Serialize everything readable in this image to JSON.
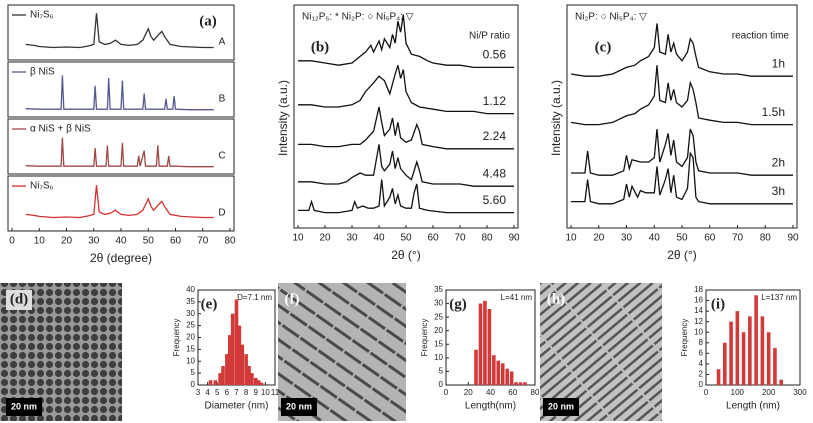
{
  "chart_data": [
    {
      "type": "line",
      "panel": "(a)",
      "label": "A",
      "legend": "top-left",
      "xlim": [
        0,
        80
      ],
      "ylim": [
        0,
        100
      ],
      "series": [
        {
          "name": "Ni₇S₆",
          "color": "#333333",
          "x": [
            5,
            8,
            10,
            15,
            20,
            25,
            28,
            30,
            31,
            32,
            34,
            36,
            38,
            40,
            43,
            46,
            48,
            50,
            51,
            52,
            54,
            55,
            56,
            58,
            62,
            66,
            70,
            74
          ],
          "values": [
            30,
            28,
            26,
            24,
            25,
            24,
            27,
            30,
            90,
            35,
            30,
            32,
            38,
            30,
            28,
            30,
            38,
            60,
            45,
            38,
            50,
            55,
            45,
            30,
            26,
            25,
            24,
            24
          ]
        }
      ]
    },
    {
      "type": "line",
      "label": "B",
      "legend": "top-left",
      "xlim": [
        0,
        80
      ],
      "ylim": [
        0,
        100
      ],
      "series": [
        {
          "name": "β NiS",
          "color": "#55598c",
          "x": [
            5,
            10,
            15,
            18,
            18.5,
            19,
            25,
            29,
            30,
            30.5,
            31,
            33,
            35,
            35.5,
            36,
            38,
            40,
            40.5,
            41,
            45,
            48,
            48.5,
            49,
            52,
            56,
            56.5,
            57,
            58,
            59,
            59.5,
            60,
            65,
            70,
            74
          ],
          "values": [
            16,
            15,
            15,
            15,
            80,
            15,
            15,
            15,
            15,
            60,
            15,
            15,
            15,
            75,
            15,
            15,
            15,
            70,
            15,
            15,
            15,
            45,
            15,
            15,
            15,
            35,
            15,
            15,
            15,
            40,
            15,
            14,
            14,
            14
          ]
        }
      ]
    },
    {
      "type": "line",
      "label": "C",
      "legend": "top-left",
      "xlim": [
        0,
        80
      ],
      "ylim": [
        0,
        100
      ],
      "series": [
        {
          "name": "α NiS + β NiS",
          "color": "#a04848",
          "x": [
            5,
            10,
            15,
            18,
            18.5,
            19,
            25,
            30,
            30.5,
            31,
            33,
            34.5,
            35,
            35.5,
            36,
            38,
            40,
            40.5,
            41,
            45,
            46,
            46.5,
            47,
            48.5,
            49,
            52,
            53,
            53.5,
            54,
            57,
            57.5,
            58,
            60,
            65,
            70,
            74
          ],
          "values": [
            16,
            15,
            15,
            15,
            70,
            15,
            15,
            15,
            50,
            15,
            15,
            15,
            55,
            15,
            15,
            15,
            15,
            60,
            15,
            15,
            15,
            35,
            15,
            45,
            15,
            15,
            15,
            55,
            15,
            15,
            35,
            15,
            15,
            14,
            14,
            14
          ]
        }
      ]
    },
    {
      "type": "line",
      "label": "D",
      "legend": "top-left",
      "xlim": [
        0,
        80
      ],
      "ylim": [
        0,
        100
      ],
      "xticks": [
        0,
        10,
        20,
        30,
        40,
        50,
        60,
        70,
        80
      ],
      "xlabel": "2θ (degree)",
      "series": [
        {
          "name": "Ni₇S₆",
          "color": "#d03030",
          "x": [
            5,
            8,
            10,
            15,
            20,
            25,
            28,
            30,
            31,
            32,
            34,
            36,
            38,
            40,
            43,
            46,
            48,
            50,
            51,
            52,
            54,
            55,
            56,
            58,
            62,
            66,
            70,
            74
          ],
          "values": [
            32,
            30,
            28,
            26,
            27,
            26,
            29,
            32,
            88,
            37,
            32,
            34,
            40,
            32,
            30,
            32,
            40,
            62,
            47,
            40,
            52,
            57,
            47,
            32,
            28,
            27,
            26,
            26
          ]
        }
      ]
    },
    {
      "type": "line",
      "panel": "(b)",
      "legend": "right",
      "annotation": "Ni₁₂P₅: *   Ni₂P: ○   Ni₅P₄: ▽",
      "legend_title": "Ni/P ratio",
      "xlim": [
        10,
        90
      ],
      "ylim": [
        0,
        100
      ],
      "xticks": [
        10,
        20,
        30,
        40,
        50,
        60,
        70,
        80,
        90
      ],
      "xlabel": "2θ (°)",
      "ylabel": "Intensity (a.u.)",
      "series": [
        {
          "name": "0.56",
          "color": "#111111",
          "x": [
            10,
            15,
            20,
            25,
            30,
            33,
            35,
            37,
            38,
            40,
            41,
            42,
            44,
            45,
            46,
            47,
            48,
            49,
            50,
            52,
            55,
            58,
            60,
            65,
            70,
            75,
            80,
            85,
            90
          ],
          "values": [
            76,
            76,
            75,
            74,
            75,
            78,
            80,
            83,
            80,
            85,
            81,
            86,
            82,
            88,
            84,
            94,
            89,
            97,
            84,
            79,
            78,
            76,
            75,
            74,
            74,
            73,
            73,
            73,
            73
          ]
        },
        {
          "name": "1.12",
          "color": "#111111",
          "x": [
            10,
            15,
            20,
            25,
            30,
            33,
            35,
            38,
            40,
            42,
            44,
            46,
            47,
            48,
            49,
            50,
            52,
            55,
            60,
            65,
            70,
            75,
            80,
            85,
            90
          ],
          "values": [
            56,
            56,
            55,
            55,
            56,
            58,
            62,
            66,
            69,
            67,
            61,
            70,
            74,
            68,
            72,
            62,
            57,
            55,
            54,
            53,
            53,
            53,
            52,
            52,
            52
          ]
        },
        {
          "name": "2.24",
          "color": "#111111",
          "x": [
            10,
            15,
            20,
            25,
            30,
            33,
            35,
            38,
            40,
            41,
            42,
            44,
            45,
            46,
            47,
            48,
            50,
            52,
            54,
            55,
            56,
            60,
            65,
            70,
            75,
            80,
            85,
            90
          ],
          "values": [
            38,
            38,
            37,
            37,
            38,
            38,
            40,
            44,
            55,
            48,
            42,
            45,
            50,
            42,
            48,
            41,
            39,
            40,
            47,
            44,
            38,
            37,
            36,
            36,
            36,
            36,
            36,
            36
          ]
        },
        {
          "name": "4.48",
          "color": "#111111",
          "x": [
            10,
            15,
            20,
            25,
            28,
            30,
            33,
            35,
            38,
            40,
            41,
            42,
            44,
            45,
            46,
            47,
            48,
            50,
            52,
            54,
            55,
            56,
            60,
            65,
            70,
            75,
            80,
            85,
            90
          ],
          "values": [
            21,
            21,
            20,
            20,
            21,
            23,
            25,
            24,
            24,
            38,
            28,
            26,
            29,
            35,
            27,
            32,
            27,
            24,
            22,
            30,
            26,
            21,
            20,
            20,
            20,
            19,
            19,
            19,
            19
          ]
        },
        {
          "name": "5.60",
          "color": "#111111",
          "x": [
            10,
            14,
            15,
            16,
            20,
            25,
            30,
            31,
            32,
            34,
            36,
            38,
            40,
            41,
            42,
            44,
            45,
            46,
            47,
            48,
            50,
            52,
            53,
            54,
            55,
            58,
            65,
            70,
            75,
            80,
            85,
            90
          ],
          "values": [
            8,
            8,
            12,
            8,
            7,
            7,
            8,
            12,
            9,
            10,
            9,
            9,
            10,
            22,
            10,
            14,
            18,
            11,
            15,
            10,
            9,
            9,
            16,
            20,
            9,
            8,
            7,
            7,
            7,
            7,
            7,
            7
          ]
        }
      ]
    },
    {
      "type": "line",
      "panel": "(c)",
      "legend": "right",
      "annotation": "Ni₂P: ○   Ni₅P₄: ▽",
      "legend_title": "reaction time",
      "xlim": [
        10,
        90
      ],
      "ylim": [
        0,
        100
      ],
      "xticks": [
        10,
        20,
        30,
        40,
        50,
        60,
        70,
        80,
        90
      ],
      "xlabel": "2θ (°)",
      "ylabel": "Intensity (a.u.)",
      "series": [
        {
          "name": "1h",
          "color": "#111111",
          "x": [
            10,
            15,
            20,
            25,
            30,
            33,
            35,
            38,
            40,
            41,
            42,
            44,
            45,
            46,
            47,
            48,
            50,
            52,
            53,
            54,
            55,
            56,
            60,
            65,
            70,
            75,
            80,
            85,
            90
          ],
          "values": [
            70,
            69,
            69,
            70,
            73,
            74,
            76,
            78,
            82,
            93,
            80,
            79,
            88,
            80,
            84,
            79,
            76,
            80,
            86,
            84,
            78,
            73,
            71,
            70,
            70,
            69,
            69,
            69,
            69
          ]
        },
        {
          "name": "1.5h",
          "color": "#111111",
          "x": [
            10,
            15,
            20,
            25,
            30,
            33,
            35,
            38,
            40,
            41,
            42,
            44,
            45,
            46,
            47,
            48,
            50,
            52,
            53,
            54,
            55,
            56,
            60,
            65,
            70,
            75,
            80,
            85,
            90
          ],
          "values": [
            48,
            47,
            47,
            48,
            51,
            52,
            54,
            56,
            60,
            74,
            58,
            57,
            66,
            58,
            63,
            57,
            55,
            58,
            66,
            63,
            57,
            50,
            49,
            48,
            48,
            47,
            47,
            47,
            47
          ]
        },
        {
          "name": "2h",
          "color": "#111111",
          "x": [
            10,
            15,
            16,
            17,
            20,
            25,
            29,
            30,
            31,
            32,
            35,
            38,
            40,
            41,
            42,
            44,
            45,
            46,
            47,
            48,
            50,
            52,
            53,
            54,
            55,
            56,
            60,
            65,
            70,
            75,
            80,
            85,
            90
          ],
          "values": [
            25,
            25,
            35,
            25,
            24,
            24,
            26,
            33,
            27,
            31,
            30,
            30,
            32,
            45,
            30,
            38,
            43,
            33,
            40,
            30,
            28,
            32,
            45,
            42,
            30,
            26,
            25,
            25,
            25,
            24,
            24,
            24,
            24
          ]
        },
        {
          "name": "3h",
          "color": "#111111",
          "x": [
            10,
            15,
            16,
            17,
            20,
            25,
            29,
            30,
            31,
            32,
            34,
            35,
            37,
            40,
            41,
            42,
            44,
            45,
            46,
            47,
            48,
            50,
            52,
            53,
            54,
            55,
            56,
            60,
            65,
            70,
            75,
            80,
            85,
            90
          ],
          "values": [
            12,
            12,
            22,
            12,
            11,
            11,
            13,
            20,
            14,
            19,
            14,
            17,
            16,
            16,
            28,
            15,
            22,
            27,
            16,
            24,
            14,
            13,
            18,
            34,
            32,
            14,
            12,
            11,
            11,
            11,
            11,
            11,
            11,
            11
          ]
        }
      ]
    },
    {
      "type": "bar",
      "panel": "(e)",
      "annotation": "D=7.1 nm",
      "color": "#d23a3a",
      "xlim": [
        3,
        11
      ],
      "ylim": [
        0,
        40
      ],
      "xticks": [
        3,
        4,
        5,
        6,
        7,
        8,
        9,
        10,
        11
      ],
      "yticks": [
        0,
        5,
        10,
        15,
        20,
        25,
        30,
        35,
        40
      ],
      "xlabel": "Diameter (nm)",
      "ylabel": "Frequency",
      "x": [
        4.3,
        4.8,
        5.3,
        5.6,
        6,
        6.3,
        6.6,
        7,
        7.3,
        7.6,
        8,
        8.3,
        8.6,
        9,
        9.3,
        9.6
      ],
      "values": [
        2,
        2,
        5,
        8,
        13,
        21,
        30,
        36,
        25,
        17,
        13,
        8,
        5,
        3,
        2,
        1
      ]
    },
    {
      "type": "bar",
      "panel": "(g)",
      "annotation": "L=41 nm",
      "color": "#d23a3a",
      "xlim": [
        0,
        80
      ],
      "ylim": [
        0,
        35
      ],
      "xticks": [
        0,
        20,
        40,
        60,
        80
      ],
      "yticks": [
        0,
        5,
        10,
        15,
        20,
        25,
        30,
        35
      ],
      "xlabel": "Length(nm)",
      "ylabel": "Frequency",
      "x": [
        27,
        31,
        35,
        39,
        43,
        47,
        51,
        55,
        59,
        63,
        67,
        71
      ],
      "values": [
        13,
        30,
        31,
        28,
        11,
        9,
        8,
        6,
        5,
        1,
        1,
        1
      ]
    },
    {
      "type": "bar",
      "panel": "(i)",
      "annotation": "L=137 nm",
      "color": "#d23a3a",
      "xlim": [
        0,
        300
      ],
      "ylim": [
        0,
        18
      ],
      "xticks": [
        0,
        100,
        200,
        300
      ],
      "yticks": [
        0,
        2,
        4,
        6,
        8,
        10,
        12,
        14,
        16,
        18
      ],
      "xlabel": "Length (nm)",
      "ylabel": "Frequency",
      "x": [
        40,
        60,
        80,
        100,
        120,
        140,
        160,
        180,
        200,
        220,
        240
      ],
      "values": [
        3,
        8,
        12,
        14,
        10,
        13,
        17,
        13,
        10,
        7,
        1
      ]
    }
  ],
  "images": [
    {
      "label": "(d)",
      "scale_bar": "20 nm"
    },
    {
      "label": "(f)",
      "scale_bar": "20 nm"
    },
    {
      "label": "(h)",
      "scale_bar": "20 nm"
    }
  ]
}
